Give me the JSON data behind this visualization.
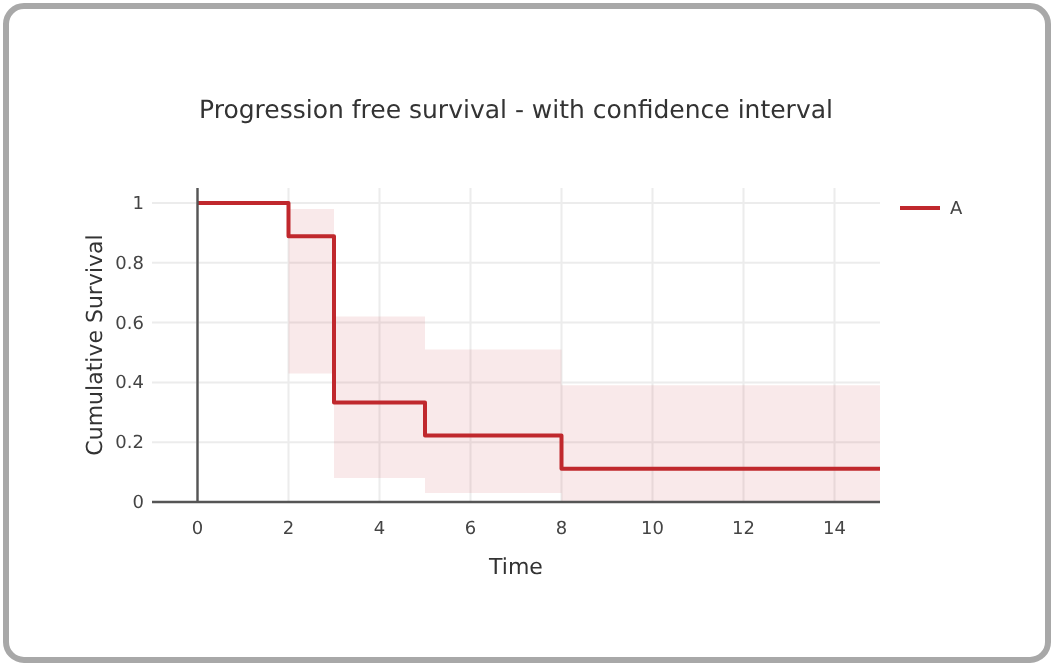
{
  "chart_data": {
    "type": "step",
    "title": "Progression free survival - with confidence interval",
    "xlabel": "Time",
    "ylabel": "Cumulative Survival",
    "series": [
      {
        "name": "A",
        "color": "#c0282d",
        "x": [
          0,
          2,
          3,
          5,
          8,
          15
        ],
        "values": [
          1,
          0.889,
          0.333,
          0.222,
          0.111,
          0.111
        ],
        "lower": [
          1,
          0.43,
          0.08,
          0.03,
          0,
          0
        ],
        "upper": [
          1,
          0.98,
          0.62,
          0.51,
          0.39,
          0.39
        ]
      }
    ],
    "xlim": [
      -1,
      15
    ],
    "xticks": [
      0,
      2,
      4,
      6,
      8,
      10,
      12,
      14
    ],
    "ylim": [
      0,
      1.05
    ],
    "yticks": [
      0,
      0.2,
      0.4,
      0.6,
      0.8,
      1
    ],
    "grid": true,
    "legend": "top right",
    "line_style": "solid"
  }
}
